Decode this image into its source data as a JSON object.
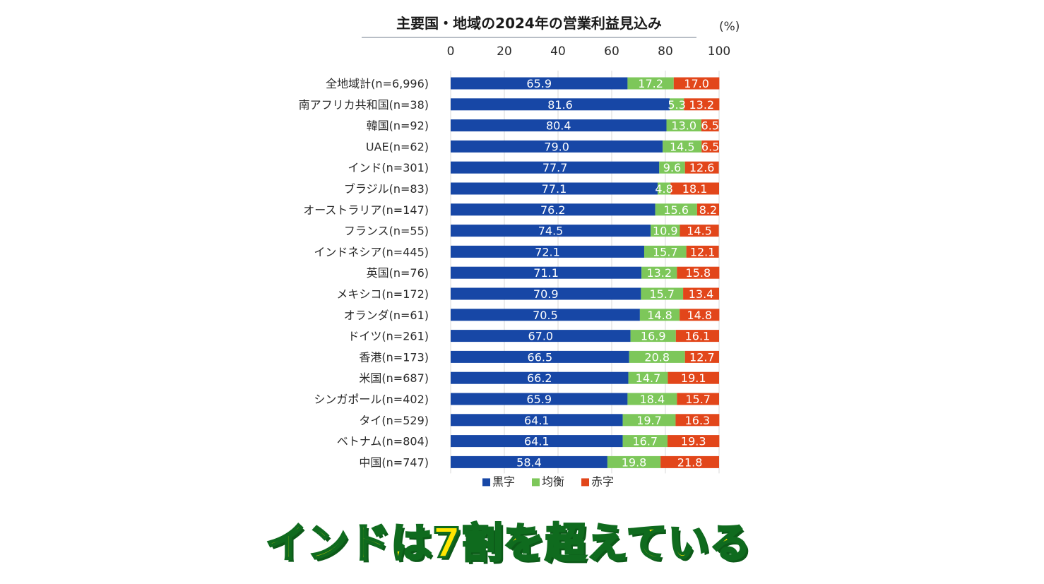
{
  "chart_data": {
    "type": "bar",
    "stacked": true,
    "orientation": "horizontal",
    "title": "主要国・地域の2024年の営業利益見込み",
    "unit": "(%)",
    "xlim": [
      0,
      100
    ],
    "xticks": [
      "0",
      "20",
      "40",
      "60",
      "80",
      "100"
    ],
    "categories": [
      "全地域計(n=6,996)",
      "南アフリカ共和国(n=38)",
      "韓国(n=92)",
      "UAE(n=62)",
      "インド(n=301)",
      "ブラジル(n=83)",
      "オーストラリア(n=147)",
      "フランス(n=55)",
      "インドネシア(n=445)",
      "英国(n=76)",
      "メキシコ(n=172)",
      "オランダ(n=61)",
      "ドイツ(n=261)",
      "香港(n=173)",
      "米国(n=687)",
      "シンガポール(n=402)",
      "タイ(n=529)",
      "ベトナム(n=804)",
      "中国(n=747)"
    ],
    "series": [
      {
        "name": "黒字",
        "color": "#1747a6",
        "values": [
          65.9,
          81.6,
          80.4,
          79.0,
          77.7,
          77.1,
          76.2,
          74.5,
          72.1,
          71.1,
          70.9,
          70.5,
          67.0,
          66.5,
          66.2,
          65.9,
          64.1,
          64.1,
          58.4
        ],
        "labels": [
          "65.9",
          "81.6",
          "80.4",
          "79.0",
          "77.7",
          "77.1",
          "76.2",
          "74.5",
          "72.1",
          "71.1",
          "70.9",
          "70.5",
          "67.0",
          "66.5",
          "66.2",
          "65.9",
          "64.1",
          "64.1",
          "58.4"
        ]
      },
      {
        "name": "均衡",
        "color": "#7dc75a",
        "values": [
          17.2,
          5.3,
          13.0,
          14.5,
          9.6,
          4.8,
          15.6,
          10.9,
          15.7,
          13.2,
          15.7,
          14.8,
          16.9,
          20.8,
          14.7,
          18.4,
          19.7,
          16.7,
          19.8
        ],
        "labels": [
          "17.2",
          "5.3",
          "13.0",
          "14.5",
          "9.6",
          "4.8",
          "15.6",
          "10.9",
          "15.7",
          "13.2",
          "15.7",
          "14.8",
          "16.9",
          "20.8",
          "14.7",
          "18.4",
          "19.7",
          "16.7",
          "19.8"
        ]
      },
      {
        "name": "赤字",
        "color": "#e2461a",
        "values": [
          17.0,
          13.2,
          6.5,
          6.5,
          12.6,
          18.1,
          8.2,
          14.5,
          12.1,
          15.8,
          13.4,
          14.8,
          16.1,
          12.7,
          19.1,
          15.7,
          16.3,
          19.3,
          21.8
        ],
        "labels": [
          "17.0",
          "13.2",
          "6.5",
          "6.5",
          "12.6",
          "18.1",
          "8.2",
          "14.5",
          "12.1",
          "15.8",
          "13.4",
          "14.8",
          "16.1",
          "12.7",
          "19.1",
          "15.7",
          "16.3",
          "19.3",
          "21.8"
        ]
      }
    ],
    "legend_position": "bottom"
  },
  "caption": "インドは7割を超えている"
}
